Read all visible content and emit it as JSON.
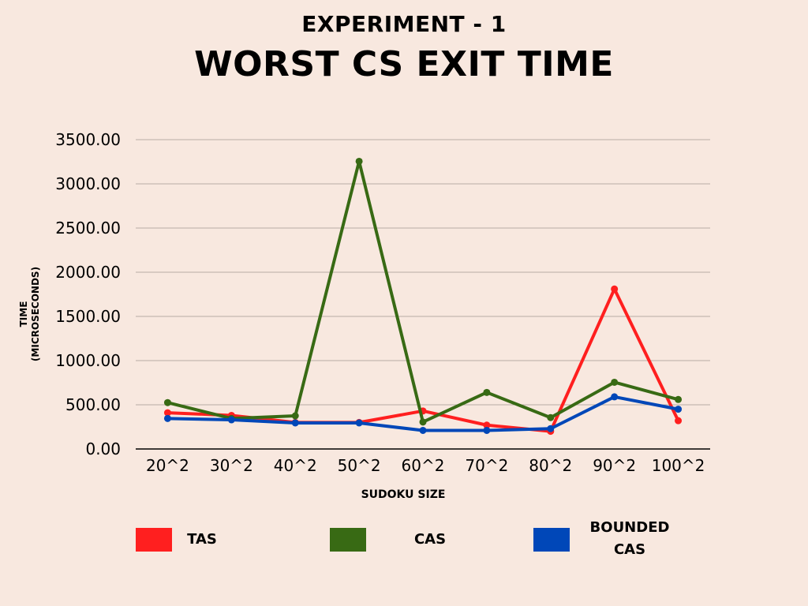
{
  "chart_data": {
    "type": "line",
    "supertitle": "EXPERIMENT - 1",
    "title": "WORST CS EXIT TIME",
    "xlabel": "SUDOKU SIZE",
    "ylabel_line1": "TIME",
    "ylabel_line2": "(MICROSECONDS)",
    "categories": [
      "20^2",
      "30^2",
      "40^2",
      "50^2",
      "60^2",
      "70^2",
      "80^2",
      "90^2",
      "100^2"
    ],
    "y_ticks": [
      "0.00",
      "500.00",
      "1000.00",
      "1500.00",
      "2000.00",
      "2500.00",
      "3000.00",
      "3500.00"
    ],
    "ylim": [
      0,
      3500
    ],
    "grid": true,
    "legend_position": "bottom",
    "series": [
      {
        "name": "TAS",
        "color": "#ff1f1f",
        "values": [
          410,
          380,
          300,
          300,
          430,
          270,
          200,
          1810,
          320
        ]
      },
      {
        "name": "CAS",
        "color": "#386a14",
        "values": [
          525,
          345,
          375,
          3255,
          305,
          640,
          355,
          755,
          560
        ]
      },
      {
        "name": "BOUNDED CAS",
        "color": "#0047b8",
        "values": [
          345,
          330,
          295,
          295,
          210,
          210,
          230,
          590,
          450
        ]
      }
    ]
  }
}
